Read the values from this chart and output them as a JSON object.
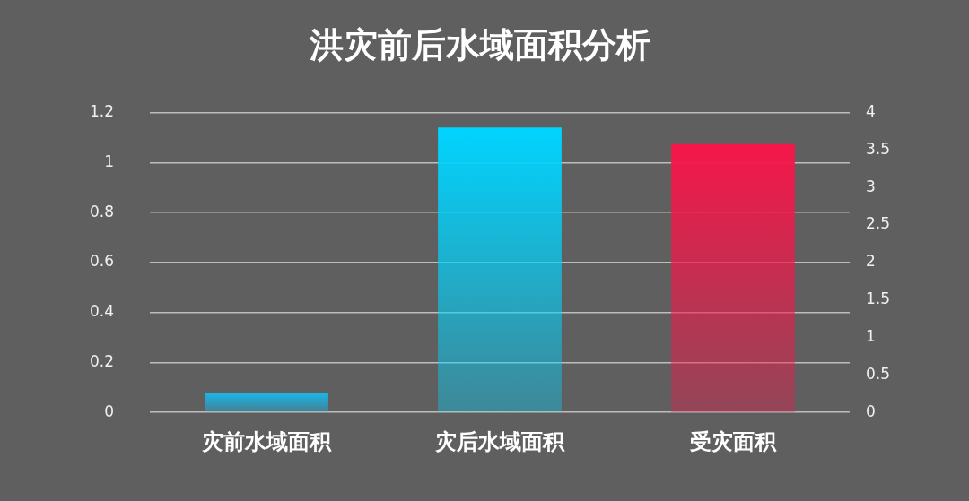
{
  "chart_data": {
    "type": "bar",
    "title": "洪灾前后水域面积分析",
    "categories": [
      "灾前水域面积",
      "灾后水域面积",
      "受灾面积"
    ],
    "series": [
      {
        "colors": [
          "#19b8ea",
          "#00d4ff",
          null
        ],
        "values": [
          0.08,
          1.14,
          null
        ]
      },
      {
        "axis": "y2",
        "colors": [
          null,
          null,
          "#f5174a"
        ],
        "values": [
          null,
          null,
          3.58
        ]
      }
    ],
    "ylim": [
      0,
      1.2
    ],
    "yticks": [
      0,
      0.2,
      0.4,
      0.6,
      0.8,
      1,
      1.2
    ],
    "y2lim": [
      0,
      4
    ],
    "y2ticks": [
      0,
      0.5,
      1,
      1.5,
      2,
      2.5,
      3,
      3.5,
      4
    ],
    "grid": "y",
    "legend": false
  }
}
